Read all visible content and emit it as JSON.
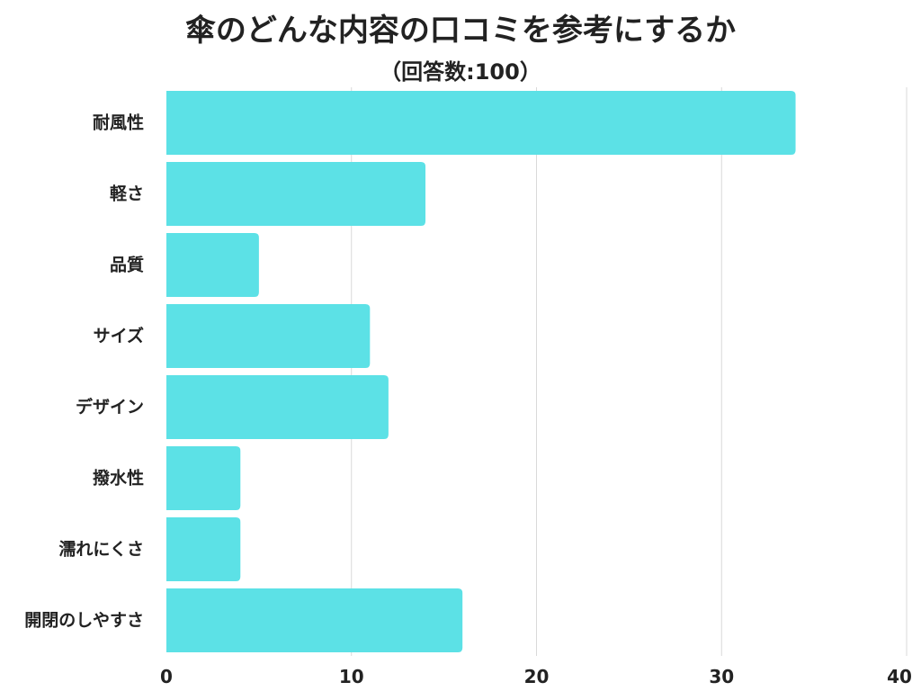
{
  "chart_data": {
    "type": "bar",
    "orientation": "horizontal",
    "title": "傘のどんな内容の口コミを参考にするか",
    "subtitle": "（回答数:100）",
    "categories": [
      "耐風性",
      "軽さ",
      "品質",
      "サイズ",
      "デザイン",
      "撥水性",
      "濡れにくさ",
      "開閉のしやすさ"
    ],
    "values": [
      34,
      14,
      5,
      11,
      12,
      4,
      4,
      16
    ],
    "xlim": [
      0,
      40
    ],
    "xticks": [
      0,
      10,
      20,
      30,
      40
    ],
    "grid": true,
    "bar_color": "#5ce1e6",
    "grid_color": "#d9d9d9",
    "text_color": "#222222"
  }
}
